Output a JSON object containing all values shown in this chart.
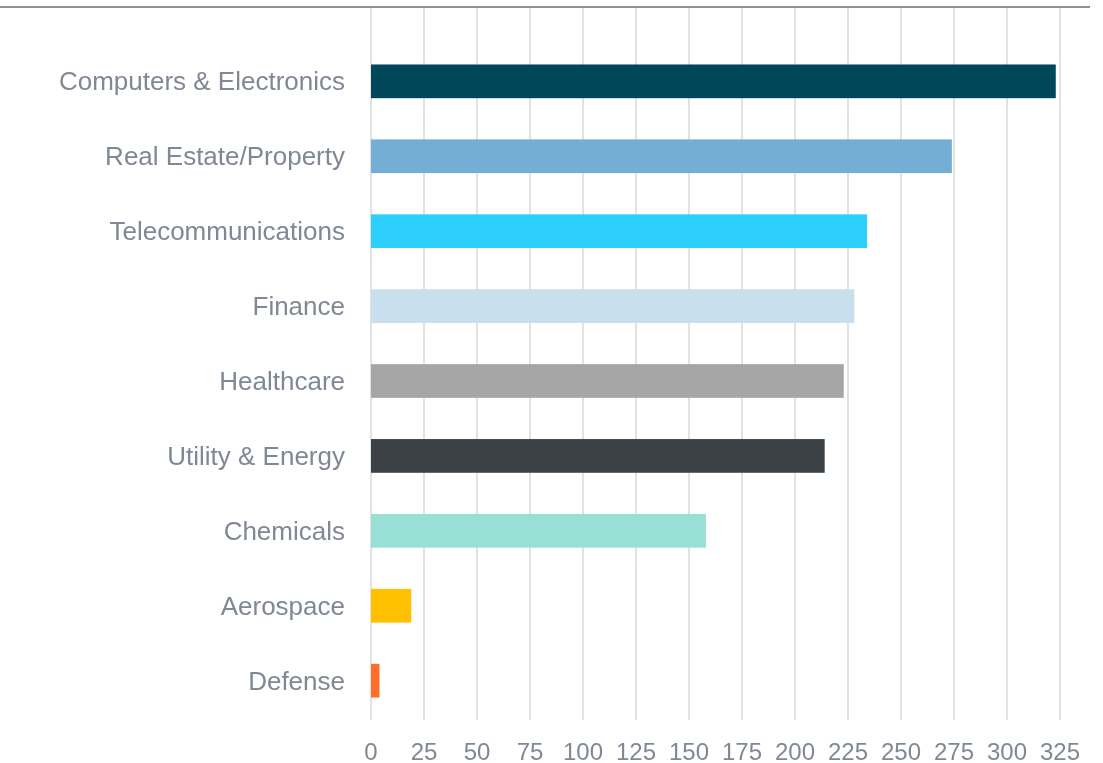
{
  "chart_data": {
    "type": "bar",
    "orientation": "horizontal",
    "categories": [
      "Computers & Electronics",
      "Real Estate/Property",
      "Telecommunications",
      "Finance",
      "Healthcare",
      "Utility & Energy",
      "Chemicals",
      "Aerospace",
      "Defense"
    ],
    "values": [
      323,
      274,
      234,
      228,
      223,
      214,
      158,
      19,
      4
    ],
    "colors": [
      "#00475a",
      "#74aed6",
      "#2dd0fd",
      "#c8dfee",
      "#a6a6a6",
      "#3c4146",
      "#98dfd5",
      "#ffc000",
      "#ff6d2a"
    ],
    "xlim": [
      0,
      325
    ],
    "xticks": [
      0,
      25,
      50,
      75,
      100,
      125,
      150,
      175,
      200,
      225,
      250,
      275,
      300,
      325
    ],
    "grid": "x"
  }
}
